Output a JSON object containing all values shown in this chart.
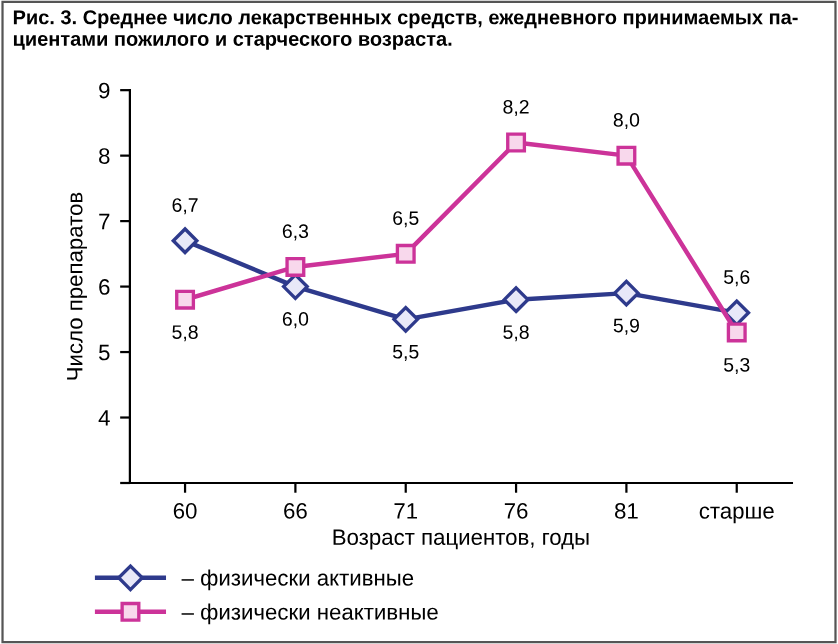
{
  "chart_data": {
    "type": "line",
    "title": "Рис. 3. Среднее число лекарственных средств, ежедневного принимаемых па-\nциентами пожилого и старческого возраста.",
    "xlabel": "Возраст пациентов, годы",
    "ylabel": "Число препаратов",
    "categories": [
      "60",
      "66",
      "71",
      "76",
      "81",
      "старше"
    ],
    "series": [
      {
        "name": "– физически активные",
        "color": "#2e3a8c",
        "marker": "diamond",
        "values": [
          6.7,
          6.0,
          5.5,
          5.8,
          5.9,
          5.6
        ],
        "value_labels": [
          "6,7",
          "6,0",
          "5,5",
          "5,8",
          "5,9",
          "5,6"
        ]
      },
      {
        "name": "– физически неактивные",
        "color": "#cc3399",
        "marker": "square",
        "values": [
          5.8,
          6.3,
          6.5,
          8.2,
          8.0,
          5.3
        ],
        "value_labels": [
          "5,8",
          "6,3",
          "6,5",
          "8,2",
          "8,0",
          "5,3"
        ]
      }
    ],
    "ylim": [
      3,
      9
    ],
    "yticks": [
      {
        "value": 3,
        "label": null
      },
      4,
      5,
      6,
      7,
      8,
      9
    ],
    "grid": false,
    "legend": "bottom",
    "line_style": "solid"
  }
}
